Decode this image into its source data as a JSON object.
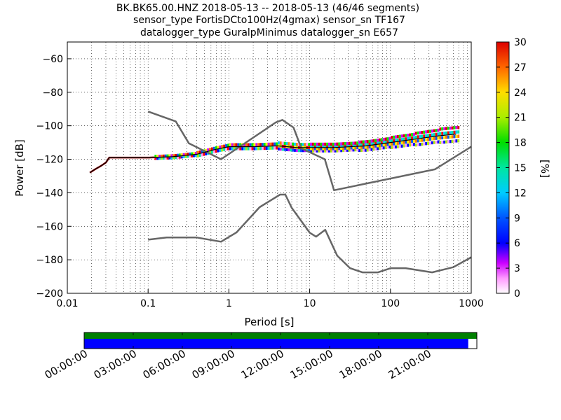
{
  "chart_data": {
    "type": "heatmap",
    "title_lines": [
      "BK.BK65.00.HNZ   2018-05-13 -- 2018-05-13  (46/46 segments)",
      "sensor_type FortisDCto100Hz(4gmax) sensor_sn TF167",
      "datalogger_type GuralpMinimus datalogger_sn E657"
    ],
    "xlabel": "Period [s]",
    "ylabel": "Power [dB]",
    "colorbar_label": "[%]",
    "x_scale": "log",
    "xlim": [
      0.01,
      1000
    ],
    "ylim": [
      -200,
      -50
    ],
    "x_ticks": [
      {
        "value": 0.01,
        "label": "0.01"
      },
      {
        "value": 0.1,
        "label": "0.1"
      },
      {
        "value": 1,
        "label": "1"
      },
      {
        "value": 10,
        "label": "10"
      },
      {
        "value": 100,
        "label": "100"
      },
      {
        "value": 1000,
        "label": "1000"
      }
    ],
    "y_ticks": [
      {
        "value": -60,
        "label": "−60"
      },
      {
        "value": -80,
        "label": "−80"
      },
      {
        "value": -100,
        "label": "−100"
      },
      {
        "value": -120,
        "label": "−120"
      },
      {
        "value": -140,
        "label": "−140"
      },
      {
        "value": -160,
        "label": "−160"
      },
      {
        "value": -180,
        "label": "−180"
      },
      {
        "value": -200,
        "label": "−200"
      }
    ],
    "grid": true,
    "colorbar": {
      "range": [
        0,
        30
      ],
      "ticks": [
        "0",
        "3",
        "6",
        "9",
        "12",
        "15",
        "18",
        "21",
        "24",
        "27",
        "30"
      ]
    },
    "nhnm": {
      "period": [
        0.1,
        0.22,
        0.32,
        0.8,
        3.8,
        4.6,
        6.3,
        7.9,
        15.4,
        20,
        354.8,
        1000
      ],
      "power": [
        -91.5,
        -97.4,
        -110.5,
        -120,
        -98,
        -96.5,
        -101,
        -113.5,
        -120,
        -138.5,
        -126,
        -112.5
      ]
    },
    "nlnm": {
      "period": [
        0.1,
        0.17,
        0.4,
        0.8,
        1.24,
        2.4,
        4.3,
        5,
        6,
        10,
        12,
        15.6,
        21.9,
        31.6,
        45,
        70,
        101,
        154,
        328,
        600,
        1000
      ],
      "power": [
        -168,
        -166.7,
        -166.7,
        -169.2,
        -163.7,
        -148.6,
        -141.1,
        -141.1,
        -149,
        -163.8,
        -166.2,
        -162.1,
        -177.5,
        -185,
        -187.5,
        -187.5,
        -185,
        -185,
        -187.5,
        -184.4,
        -178.5
      ]
    },
    "mean_psd": {
      "period": [
        0.019,
        0.022,
        0.026,
        0.03,
        0.033,
        0.05,
        0.1,
        0.2,
        0.4,
        0.7,
        1,
        2,
        4,
        7,
        10,
        20,
        50,
        100,
        200,
        400,
        650
      ],
      "power": [
        -128,
        -126,
        -124,
        -122,
        -119,
        -119,
        -119,
        -118.5,
        -117,
        -114,
        -112.5,
        -112.5,
        -112,
        -113,
        -113,
        -113,
        -112,
        -110,
        -108,
        -106,
        -105
      ]
    },
    "psd_spread": [
      {
        "period": 0.15,
        "offsets": [
          -0.6,
          0.6
        ]
      },
      {
        "period": 0.4,
        "offsets": [
          -1,
          1
        ]
      },
      {
        "period": 1,
        "offsets": [
          -1.2,
          1.2
        ]
      },
      {
        "period": 4,
        "offsets": [
          -1.8,
          0,
          1.8
        ]
      },
      {
        "period": 10,
        "offsets": [
          -2,
          -0.7,
          0.7,
          2
        ]
      },
      {
        "period": 40,
        "offsets": [
          -2.5,
          -0.8,
          0.8,
          2.5
        ]
      },
      {
        "period": 100,
        "offsets": [
          -3,
          -1,
          1,
          3
        ]
      },
      {
        "period": 200,
        "offsets": [
          -3.5,
          -1.2,
          1.2,
          3.5
        ]
      },
      {
        "period": 400,
        "offsets": [
          -4,
          -1.3,
          1.3,
          4
        ]
      },
      {
        "period": 650,
        "offsets": [
          -4,
          -1.3,
          1.3,
          4
        ]
      }
    ],
    "coverage": {
      "time_labels": [
        "00:00:00",
        "03:00:00",
        "06:00:00",
        "09:00:00",
        "12:00:00",
        "15:00:00",
        "18:00:00",
        "21:00:00"
      ],
      "data_fraction": 0.978,
      "data_color": "#0000ff",
      "used_color": "#008000"
    }
  },
  "colors": {
    "noise_model": "#666666",
    "mean": "#000000",
    "grid": "#000000"
  }
}
